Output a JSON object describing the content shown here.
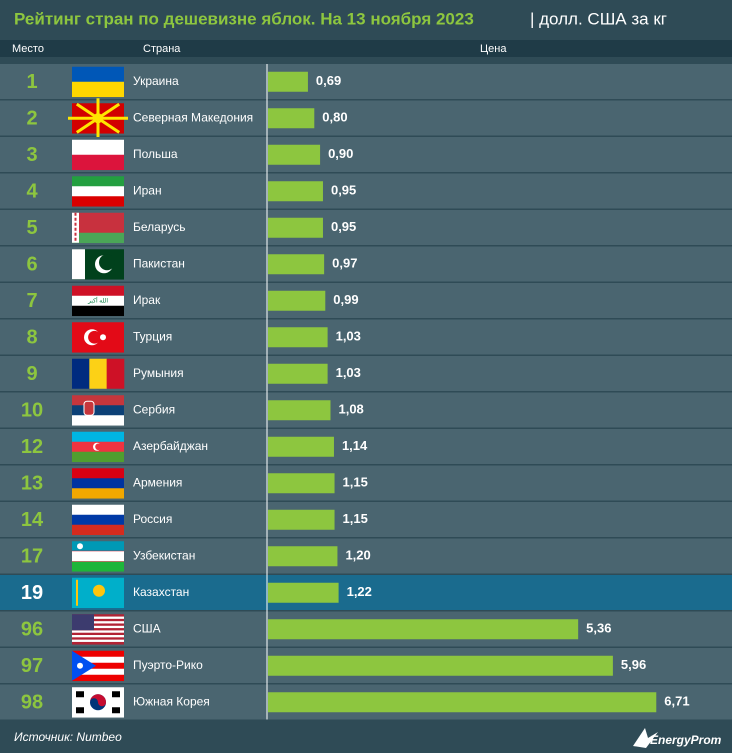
{
  "chart_data": {
    "type": "bar",
    "title": "Рейтинг стран по дешевизне яблок. На 13 ноября 2023",
    "subtitle": "| долл. США за кг",
    "headers": [
      "Место",
      "Страна",
      "Цена"
    ],
    "ranks": [
      1,
      2,
      3,
      4,
      5,
      6,
      7,
      8,
      9,
      10,
      12,
      13,
      14,
      17,
      19,
      96,
      97,
      98
    ],
    "categories": [
      "Украина",
      "Северная Македония",
      "Польша",
      "Иран",
      "Беларусь",
      "Пакистан",
      "Ирак",
      "Турция",
      "Румыния",
      "Сербия",
      "Азербайджан",
      "Армения",
      "Россия",
      "Узбекистан",
      "Казахстан",
      "США",
      "Пуэрто-Рико",
      "Южная Корея"
    ],
    "values": [
      0.69,
      0.8,
      0.9,
      0.95,
      0.95,
      0.97,
      0.99,
      1.03,
      1.03,
      1.08,
      1.14,
      1.15,
      1.15,
      1.2,
      1.22,
      5.36,
      5.96,
      6.71
    ],
    "value_labels": [
      "0,69",
      "0,80",
      "0,90",
      "0,95",
      "0,95",
      "0,97",
      "0,99",
      "1,03",
      "1,03",
      "1,08",
      "1,14",
      "1,15",
      "1,15",
      "1,20",
      "1,22",
      "5,36",
      "5,96",
      "6,71"
    ],
    "xlim": [
      0,
      7.5
    ],
    "color": "#8dc63f",
    "highlight_index": 14,
    "source": "Источник: Numbeo",
    "brand": "EnergyProm"
  }
}
